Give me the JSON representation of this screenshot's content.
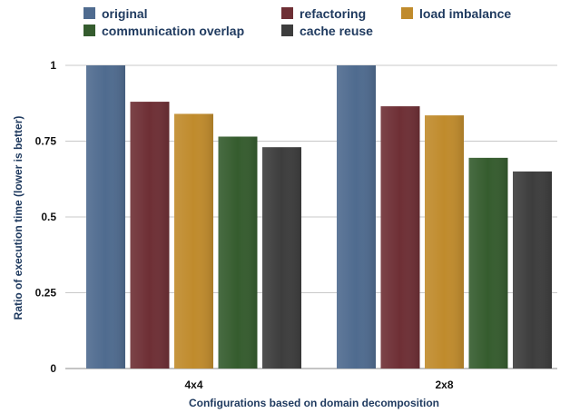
{
  "chart_data": {
    "type": "bar",
    "categories": [
      "4x4",
      "2x8"
    ],
    "series": [
      {
        "name": "original",
        "values": [
          1.0,
          1.0
        ],
        "color": "#4f6b8f"
      },
      {
        "name": "refactoring",
        "values": [
          0.88,
          0.865
        ],
        "color": "#6e2f35"
      },
      {
        "name": "load imbalance",
        "values": [
          0.84,
          0.835
        ],
        "color": "#c08b2c"
      },
      {
        "name": "communication overlap",
        "values": [
          0.765,
          0.695
        ],
        "color": "#355c2e"
      },
      {
        "name": "cache reuse",
        "values": [
          0.73,
          0.65
        ],
        "color": "#3d3d3d"
      }
    ],
    "xlabel": "Configurations based on domain decomposition",
    "ylabel": "Ratio of execution time (lower is better)",
    "ylim": [
      0,
      1
    ],
    "yticks": [
      0,
      0.25,
      0.5,
      0.75,
      1
    ],
    "ytick_labels": [
      "0",
      "0.25",
      "0.5",
      "0.75",
      "1"
    ],
    "grid": true,
    "legend_position": "top"
  }
}
